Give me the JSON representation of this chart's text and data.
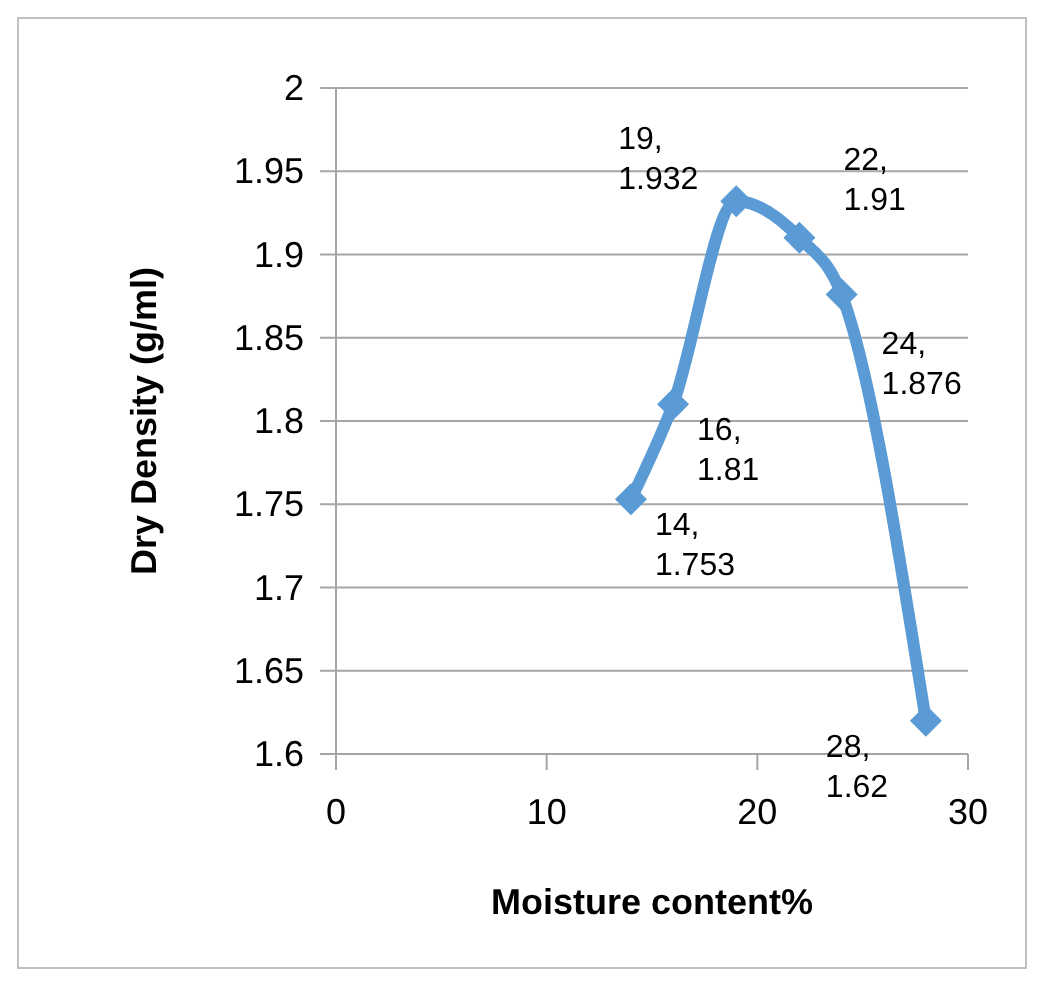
{
  "chart_data": {
    "type": "line",
    "xlabel": "Moisture content%",
    "ylabel": "Dry Density (g/ml)",
    "x": [
      14,
      16,
      19,
      22,
      24,
      28
    ],
    "series": [
      {
        "color": "#5b9bd5",
        "values": [
          1.753,
          1.81,
          1.932,
          1.91,
          1.876,
          1.62
        ],
        "value_labels": [
          "14, 1.753",
          "16, 1.81",
          "19, 1.932",
          "22, 1.91",
          "24, 1.876",
          "28, 1.62"
        ]
      }
    ],
    "xlim": [
      0,
      30
    ],
    "xticks": [
      0,
      10,
      20,
      30
    ],
    "ylim": [
      1.6,
      2
    ],
    "yticks": [
      1.6,
      1.65,
      1.7,
      1.75,
      1.8,
      1.85,
      1.9,
      1.95,
      2
    ],
    "grid": "y",
    "marker": "diamond",
    "line_style": "solid"
  }
}
